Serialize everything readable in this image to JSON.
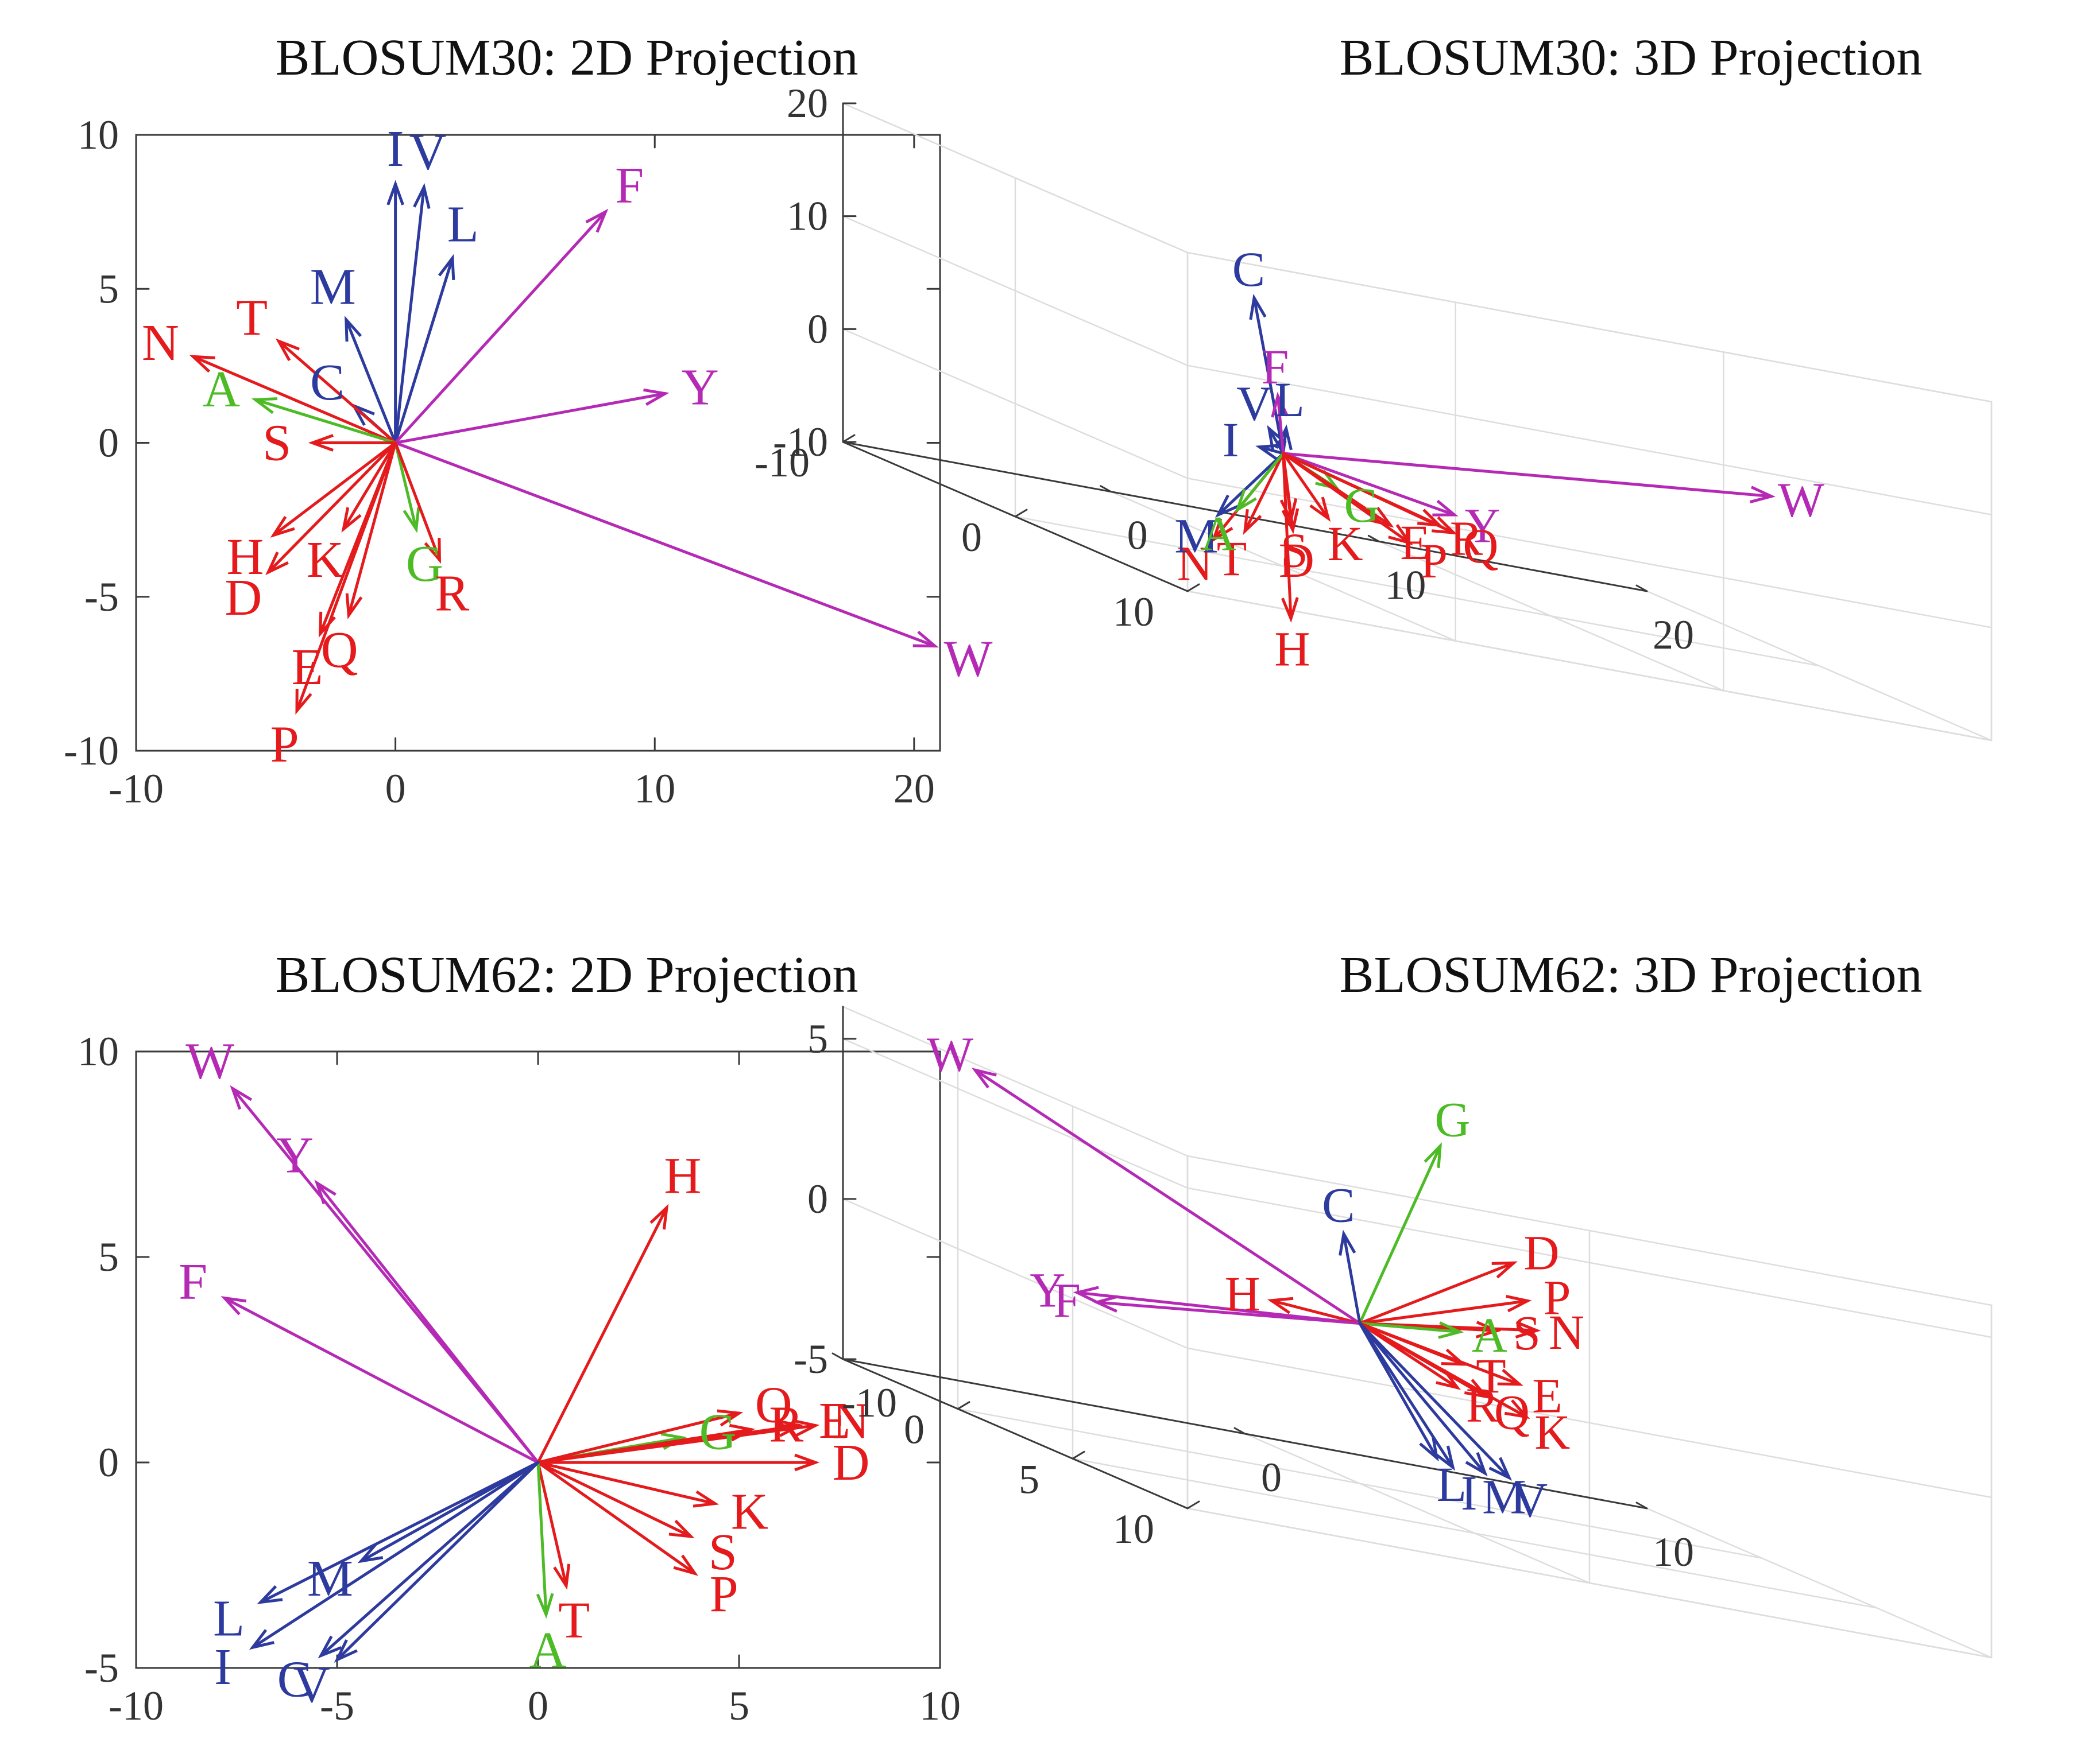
{
  "colors": {
    "polar": "#e41a1c",
    "hydrophobic": "#2d3a9e",
    "aromatic": "#b52ab5",
    "small": "#4dbb26",
    "axis": "#3a3a3a",
    "grid": "#dddddd"
  },
  "chart_data": [
    {
      "id": "b30-2d",
      "type": "vector-2d",
      "title": "BLOSUM30: 2D Projection",
      "xlim": [
        -10,
        21
      ],
      "ylim": [
        -10,
        10
      ],
      "xticks": [
        -10,
        0,
        10,
        20
      ],
      "yticks": [
        -10,
        -5,
        0,
        5,
        10
      ],
      "xtick_labels": [
        "-10",
        "0",
        "10",
        "20"
      ],
      "ytick_labels": [
        "-10",
        "-5",
        "0",
        "5",
        "10"
      ],
      "vectors": [
        {
          "label": "I",
          "x": 0,
          "y": 8.4,
          "color": "hydrophobic"
        },
        {
          "label": "V",
          "x": 1.1,
          "y": 8.3,
          "color": "hydrophobic"
        },
        {
          "label": "L",
          "x": 2.2,
          "y": 6.0,
          "color": "hydrophobic"
        },
        {
          "label": "M",
          "x": -1.9,
          "y": 4.0,
          "color": "hydrophobic"
        },
        {
          "label": "C",
          "x": -1.6,
          "y": 1.2,
          "color": "hydrophobic"
        },
        {
          "label": "F",
          "x": 8.1,
          "y": 7.5,
          "color": "aromatic"
        },
        {
          "label": "Y",
          "x": 10.4,
          "y": 1.6,
          "color": "aromatic"
        },
        {
          "label": "W",
          "x": 20.8,
          "y": -6.6,
          "color": "aromatic"
        },
        {
          "label": "N",
          "x": -7.8,
          "y": 2.8,
          "color": "polar"
        },
        {
          "label": "T",
          "x": -4.5,
          "y": 3.3,
          "color": "polar"
        },
        {
          "label": "A",
          "x": -5.4,
          "y": 1.4,
          "color": "small"
        },
        {
          "label": "S",
          "x": -3.2,
          "y": 0,
          "color": "polar"
        },
        {
          "label": "H",
          "x": -4.7,
          "y": -3.0,
          "color": "polar"
        },
        {
          "label": "K",
          "x": -2.0,
          "y": -2.8,
          "color": "polar"
        },
        {
          "label": "D",
          "x": -4.9,
          "y": -4.2,
          "color": "polar"
        },
        {
          "label": "E",
          "x": -2.9,
          "y": -6.2,
          "color": "polar"
        },
        {
          "label": "Q",
          "x": -1.8,
          "y": -5.6,
          "color": "polar"
        },
        {
          "label": "G",
          "x": 0.8,
          "y": -2.8,
          "color": "small"
        },
        {
          "label": "R",
          "x": 1.7,
          "y": -3.8,
          "color": "polar"
        },
        {
          "label": "P",
          "x": -3.8,
          "y": -8.7,
          "color": "polar"
        }
      ]
    },
    {
      "id": "b30-3d",
      "type": "vector-3d",
      "title": "BLOSUM30: 3D Projection",
      "xlim": [
        -10,
        20
      ],
      "ylim": [
        -10,
        10
      ],
      "zlim": [
        -10,
        20
      ],
      "xticks": [
        0,
        10,
        20
      ],
      "yticks": [
        -10,
        0,
        10
      ],
      "zticks": [
        -10,
        0,
        10,
        20
      ],
      "xtick_labels": [
        "0",
        "10",
        "20"
      ],
      "ytick_labels": [
        "-10",
        "0",
        "10"
      ],
      "ztick_labels": [
        "-10",
        "0",
        "10",
        "20"
      ],
      "vectors": [
        {
          "label": "C",
          "x": -1.6,
          "y": 0.8,
          "z": 13.6,
          "color": "hydrophobic"
        },
        {
          "label": "V",
          "x": -4.0,
          "y": 5.4,
          "z": 4.0,
          "color": "hydrophobic"
        },
        {
          "label": "I",
          "x": -5.0,
          "y": 6.4,
          "z": 2.6,
          "color": "hydrophobic"
        },
        {
          "label": "L",
          "x": -1.5,
          "y": 2.5,
          "z": 3.2,
          "color": "hydrophobic"
        },
        {
          "label": "F",
          "x": -0.2,
          "y": 0,
          "z": 5.0,
          "color": "aromatic"
        },
        {
          "label": "W",
          "x": 18.6,
          "y": -0.6,
          "z": 4.0,
          "color": "aromatic"
        },
        {
          "label": "Y",
          "x": 6.0,
          "y": 0.6,
          "z": -2.4,
          "color": "aromatic"
        },
        {
          "label": "G",
          "x": 2.0,
          "y": 0,
          "z": -2.2,
          "color": "small"
        },
        {
          "label": "N",
          "x": -8.0,
          "y": 8.4,
          "z": -5.6,
          "color": "polar"
        },
        {
          "label": "M",
          "x": -5.0,
          "y": 4.0,
          "z": -5.0,
          "color": "hydrophobic"
        },
        {
          "label": "T",
          "x": -4.0,
          "y": 4.0,
          "z": -6.0,
          "color": "polar"
        },
        {
          "label": "A",
          "x": -3.0,
          "y": 2.0,
          "z": -5.0,
          "color": "small"
        },
        {
          "label": "S",
          "x": -1.0,
          "y": 2.0,
          "z": -5.0,
          "color": "polar"
        },
        {
          "label": "K",
          "x": 2.0,
          "y": -0.5,
          "z": -5.2,
          "color": "polar"
        },
        {
          "label": "E",
          "x": 4.0,
          "y": 0,
          "z": -4.6,
          "color": "polar"
        },
        {
          "label": "R",
          "x": 5.5,
          "y": 0.5,
          "z": -3.6,
          "color": "polar"
        },
        {
          "label": "D",
          "x": 1.0,
          "y": -1.0,
          "z": -7.0,
          "color": "polar"
        },
        {
          "label": "Q",
          "x": 7.0,
          "y": -1.0,
          "z": -4.6,
          "color": "polar"
        },
        {
          "label": "P",
          "x": 6.0,
          "y": -2.0,
          "z": -6.6,
          "color": "polar"
        },
        {
          "label": "H",
          "x": 0.8,
          "y": -0.8,
          "z": -14.8,
          "color": "polar"
        }
      ]
    },
    {
      "id": "b62-2d",
      "type": "vector-2d",
      "title": "BLOSUM62: 2D Projection",
      "xlim": [
        -10,
        10
      ],
      "ylim": [
        -5,
        10
      ],
      "xticks": [
        -10,
        -5,
        0,
        5,
        10
      ],
      "yticks": [
        -5,
        0,
        5,
        10
      ],
      "xtick_labels": [
        "-10",
        "-5",
        "0",
        "5",
        "10"
      ],
      "ytick_labels": [
        "-5",
        "0",
        "5",
        "10"
      ],
      "vectors": [
        {
          "label": "W",
          "x": -7.6,
          "y": 9.1,
          "color": "aromatic"
        },
        {
          "label": "Y",
          "x": -5.5,
          "y": 6.8,
          "color": "aromatic"
        },
        {
          "label": "F",
          "x": -7.8,
          "y": 4.0,
          "color": "aromatic"
        },
        {
          "label": "H",
          "x": 3.2,
          "y": 6.2,
          "color": "polar"
        },
        {
          "label": "G",
          "x": 3.6,
          "y": 0.6,
          "color": "small"
        },
        {
          "label": "Q",
          "x": 5.0,
          "y": 1.2,
          "color": "polar"
        },
        {
          "label": "E",
          "x": 6.5,
          "y": 0.9,
          "color": "polar"
        },
        {
          "label": "R",
          "x": 5.3,
          "y": 0.8,
          "color": "polar"
        },
        {
          "label": "N",
          "x": 6.9,
          "y": 0.9,
          "color": "polar"
        },
        {
          "label": "D",
          "x": 6.9,
          "y": 0,
          "color": "polar"
        },
        {
          "label": "K",
          "x": 4.4,
          "y": -1.0,
          "color": "polar"
        },
        {
          "label": "S",
          "x": 3.8,
          "y": -1.8,
          "color": "polar"
        },
        {
          "label": "P",
          "x": 3.9,
          "y": -2.7,
          "color": "polar"
        },
        {
          "label": "T",
          "x": 0.7,
          "y": -3.0,
          "color": "polar"
        },
        {
          "label": "A",
          "x": 0.2,
          "y": -3.7,
          "color": "small"
        },
        {
          "label": "M",
          "x": -4.4,
          "y": -2.4,
          "color": "hydrophobic"
        },
        {
          "label": "L",
          "x": -6.9,
          "y": -3.4,
          "color": "hydrophobic"
        },
        {
          "label": "I",
          "x": -7.1,
          "y": -4.5,
          "color": "hydrophobic"
        },
        {
          "label": "C",
          "x": -5.4,
          "y": -4.7,
          "color": "hydrophobic"
        },
        {
          "label": "V",
          "x": -5.0,
          "y": -4.8,
          "color": "hydrophobic"
        }
      ]
    },
    {
      "id": "b62-3d",
      "type": "vector-3d",
      "title": "BLOSUM62: 3D Projection",
      "xlim": [
        -10,
        10
      ],
      "ylim": [
        -5,
        10
      ],
      "zlim": [
        -5,
        6
      ],
      "xticks": [
        -10,
        0,
        10
      ],
      "yticks": [
        0,
        5,
        10
      ],
      "zticks": [
        -5,
        0,
        5
      ],
      "xtick_labels": [
        "-10",
        "0",
        "10"
      ],
      "ytick_labels": [
        "0",
        "5",
        "10"
      ],
      "ztick_labels": [
        "-5",
        "0",
        "5"
      ],
      "vectors": [
        {
          "label": "W",
          "x": -9.0,
          "y": -1.0,
          "z": 5.5,
          "color": "aromatic"
        },
        {
          "label": "G",
          "x": 2.0,
          "y": 0,
          "z": 6.0,
          "color": "small"
        },
        {
          "label": "C",
          "x": -0.4,
          "y": 0,
          "z": 2.7,
          "color": "hydrophobic"
        },
        {
          "label": "D",
          "x": 4.4,
          "y": -1.0,
          "z": 2.6,
          "color": "polar"
        },
        {
          "label": "P",
          "x": 4.4,
          "y": -0.4,
          "z": 1.6,
          "color": "polar"
        },
        {
          "label": "N",
          "x": 4.4,
          "y": 0,
          "z": 0.8,
          "color": "polar"
        },
        {
          "label": "S",
          "x": 3.3,
          "y": 0.2,
          "z": 0.6,
          "color": "polar"
        },
        {
          "label": "A",
          "x": 2.2,
          "y": 0.5,
          "z": 0.4,
          "color": "small"
        },
        {
          "label": "E",
          "x": 3.4,
          "y": 1.0,
          "z": -0.8,
          "color": "polar"
        },
        {
          "label": "T",
          "x": 2.0,
          "y": 1.0,
          "z": -0.5,
          "color": "polar"
        },
        {
          "label": "K",
          "x": 3.0,
          "y": 2.0,
          "z": -1.6,
          "color": "polar"
        },
        {
          "label": "Q",
          "x": 2.0,
          "y": 2.0,
          "z": -1.2,
          "color": "polar"
        },
        {
          "label": "R",
          "x": 1.0,
          "y": 2.5,
          "z": -1.0,
          "color": "polar"
        },
        {
          "label": "H",
          "x": -2.2,
          "y": 0,
          "z": 0.2,
          "color": "polar"
        },
        {
          "label": "Y",
          "x": -7.6,
          "y": 1.0,
          "z": -0.5,
          "color": "aromatic"
        },
        {
          "label": "F",
          "x": -7.4,
          "y": 1.5,
          "z": -0.6,
          "color": "aromatic"
        },
        {
          "label": "L",
          "x": -1.8,
          "y": 6.5,
          "z": -2.6,
          "color": "hydrophobic"
        },
        {
          "label": "I",
          "x": -1.4,
          "y": 6.5,
          "z": -2.8,
          "color": "hydrophobic"
        },
        {
          "label": "M",
          "x": -0.6,
          "y": 6.5,
          "z": -2.8,
          "color": "hydrophobic"
        },
        {
          "label": "V",
          "x": 0,
          "y": 6.5,
          "z": -2.8,
          "color": "hydrophobic"
        }
      ]
    }
  ]
}
